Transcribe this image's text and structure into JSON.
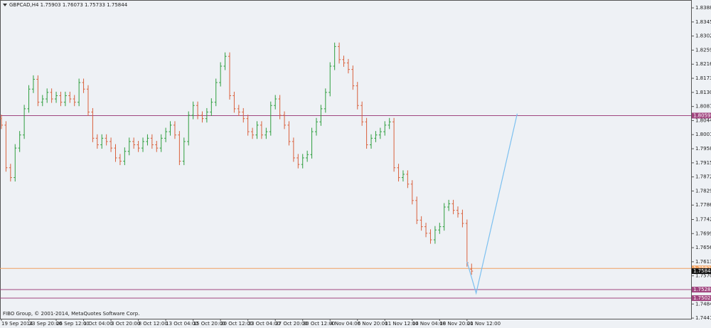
{
  "chart_data": {
    "type": "ohlc",
    "title": "GBPCAD,H4  1.75903 1.76073 1.75733 1.75844",
    "footer": "FIBO Group, © 2001-2014, MetaQuotes Software Corp.",
    "up_color": "#2e9e3e",
    "down_color": "#d9603c",
    "ylim": [
      1.7439,
      1.8412
    ],
    "yticks": [
      {
        "value": 1.8388,
        "label": "1.83880"
      },
      {
        "value": 1.8345,
        "label": "1.83450"
      },
      {
        "value": 1.8302,
        "label": "1.83020"
      },
      {
        "value": 1.8259,
        "label": "1.82590"
      },
      {
        "value": 1.8216,
        "label": "1.82160"
      },
      {
        "value": 1.8173,
        "label": "1.81730"
      },
      {
        "value": 1.813,
        "label": "1.81300"
      },
      {
        "value": 1.8087,
        "label": "1.80870"
      },
      {
        "value": 1.8044,
        "label": "1.80440"
      },
      {
        "value": 1.8001,
        "label": "1.80010"
      },
      {
        "value": 1.7958,
        "label": "1.79580"
      },
      {
        "value": 1.7915,
        "label": "1.79150"
      },
      {
        "value": 1.7872,
        "label": "1.78720"
      },
      {
        "value": 1.7829,
        "label": "1.78290"
      },
      {
        "value": 1.7786,
        "label": "1.77860"
      },
      {
        "value": 1.7742,
        "label": "1.77420"
      },
      {
        "value": 1.7699,
        "label": "1.76990"
      },
      {
        "value": 1.7656,
        "label": "1.76560"
      },
      {
        "value": 1.7613,
        "label": "1.76130"
      },
      {
        "value": 1.757,
        "label": "1.75700"
      },
      {
        "value": 1.7484,
        "label": "1.74840"
      },
      {
        "value": 1.7441,
        "label": "1.74410"
      }
    ],
    "categories": [
      "19 Sep 2014",
      null,
      null,
      null,
      null,
      null,
      "23 Sep 20:00",
      null,
      null,
      null,
      null,
      null,
      "26 Sep 12:00",
      null,
      null,
      null,
      null,
      null,
      "1 Oct 04:00",
      null,
      null,
      null,
      null,
      null,
      "3 Oct 20:00",
      null,
      null,
      null,
      null,
      null,
      "8 Oct 12:00",
      null,
      null,
      null,
      null,
      null,
      "13 Oct 04:00",
      null,
      null,
      null,
      null,
      null,
      "15 Oct 20:00",
      null,
      null,
      null,
      null,
      null,
      "20 Oct 12:00",
      null,
      null,
      null,
      null,
      null,
      "23 Oct 04:00",
      null,
      null,
      null,
      null,
      null,
      "27 Oct 20:00",
      null,
      null,
      null,
      null,
      null,
      "30 Oct 12:00",
      null,
      null,
      null,
      null,
      null,
      "4 Nov 04:00",
      null,
      null,
      null,
      null,
      null,
      "6 Nov 20:00",
      null,
      null,
      null,
      null,
      null,
      "11 Nov 12:00",
      null,
      null,
      null,
      null,
      null,
      "14 Nov 04:00",
      null,
      null,
      null,
      null,
      null,
      "18 Nov 20:00",
      null,
      null,
      null,
      null,
      null,
      "21 Nov 12:00",
      null
    ],
    "open": [
      1.805,
      1.803,
      1.79,
      1.787,
      1.796,
      1.8,
      1.808,
      1.814,
      1.817,
      1.81,
      1.811,
      1.813,
      1.811,
      1.812,
      1.81,
      1.812,
      1.811,
      1.81,
      1.816,
      1.814,
      1.807,
      1.799,
      1.797,
      1.799,
      1.798,
      1.796,
      1.793,
      1.792,
      1.795,
      1.798,
      1.797,
      1.796,
      1.798,
      1.799,
      1.797,
      1.796,
      1.799,
      1.801,
      1.803,
      1.8,
      1.792,
      1.798,
      1.806,
      1.809,
      1.806,
      1.805,
      1.807,
      1.81,
      1.816,
      1.821,
      1.824,
      1.812,
      1.808,
      1.807,
      1.805,
      1.801,
      1.8,
      1.803,
      1.8,
      1.801,
      1.809,
      1.811,
      1.806,
      1.803,
      1.798,
      1.793,
      1.791,
      1.793,
      1.794,
      1.801,
      1.804,
      1.808,
      1.813,
      1.821,
      1.827,
      1.823,
      1.822,
      1.82,
      1.815,
      1.809,
      1.804,
      1.797,
      1.799,
      1.8,
      1.801,
      1.803,
      1.804,
      1.79,
      1.787,
      1.788,
      1.785,
      1.78,
      1.774,
      1.772,
      1.77,
      1.768,
      1.771,
      1.772,
      1.778,
      1.779,
      1.777,
      1.776,
      1.773,
      1.75903
    ],
    "high": [
      1.8062,
      1.8042,
      1.7912,
      1.7972,
      1.8012,
      1.8092,
      1.8152,
      1.8182,
      1.8182,
      1.8122,
      1.8142,
      1.8142,
      1.8132,
      1.8132,
      1.8132,
      1.8132,
      1.8122,
      1.8172,
      1.8172,
      1.8152,
      1.8082,
      1.8002,
      1.8002,
      1.8002,
      1.7992,
      1.7972,
      1.7942,
      1.7962,
      1.7992,
      1.7992,
      1.7982,
      1.7992,
      1.8002,
      1.8002,
      1.7982,
      1.8002,
      1.8022,
      1.8042,
      1.8042,
      1.8012,
      1.7992,
      1.8072,
      1.8102,
      1.8102,
      1.8072,
      1.8082,
      1.8112,
      1.8172,
      1.8222,
      1.8252,
      1.8252,
      1.8132,
      1.8092,
      1.8082,
      1.8062,
      1.8022,
      1.8042,
      1.8042,
      1.8022,
      1.8102,
      1.8122,
      1.8122,
      1.8072,
      1.8042,
      1.7992,
      1.7942,
      1.7942,
      1.7952,
      1.8022,
      1.8052,
      1.8092,
      1.8142,
      1.8222,
      1.8282,
      1.8282,
      1.8242,
      1.8232,
      1.8212,
      1.8162,
      1.8102,
      1.8052,
      1.8002,
      1.8012,
      1.8022,
      1.8042,
      1.8052,
      1.8052,
      1.7912,
      1.7892,
      1.7892,
      1.7862,
      1.7812,
      1.7752,
      1.7732,
      1.7712,
      1.7722,
      1.7732,
      1.7792,
      1.7802,
      1.7802,
      1.7782,
      1.7772,
      1.7742,
      1.76073
    ],
    "low": [
      1.8018,
      1.7888,
      1.7858,
      1.7858,
      1.7948,
      1.7988,
      1.8068,
      1.8128,
      1.8088,
      1.8088,
      1.8098,
      1.8098,
      1.8098,
      1.8088,
      1.8088,
      1.8098,
      1.8088,
      1.8088,
      1.8128,
      1.8058,
      1.7978,
      1.7958,
      1.7958,
      1.7968,
      1.7948,
      1.7918,
      1.7908,
      1.7908,
      1.7938,
      1.7958,
      1.7948,
      1.7948,
      1.7968,
      1.7958,
      1.7948,
      1.7948,
      1.7978,
      1.7998,
      1.7988,
      1.7908,
      1.7908,
      1.7968,
      1.8048,
      1.8048,
      1.8038,
      1.8038,
      1.8058,
      1.8088,
      1.8148,
      1.8198,
      1.8108,
      1.8068,
      1.8058,
      1.8038,
      1.7998,
      1.7988,
      1.7988,
      1.7988,
      1.7988,
      1.7998,
      1.8078,
      1.8048,
      1.8018,
      1.7968,
      1.7918,
      1.7898,
      1.7898,
      1.7918,
      1.7928,
      1.7998,
      1.8028,
      1.8068,
      1.8118,
      1.8198,
      1.8218,
      1.8208,
      1.8188,
      1.8138,
      1.8078,
      1.8028,
      1.7958,
      1.7958,
      1.7978,
      1.7988,
      1.7998,
      1.8018,
      1.7888,
      1.7858,
      1.7858,
      1.7838,
      1.7788,
      1.7728,
      1.7708,
      1.7688,
      1.7668,
      1.7668,
      1.7698,
      1.7708,
      1.7768,
      1.7758,
      1.7748,
      1.7718,
      1.7598,
      1.75733
    ],
    "close": [
      1.803,
      1.79,
      1.787,
      1.796,
      1.8,
      1.808,
      1.814,
      1.817,
      1.81,
      1.811,
      1.813,
      1.811,
      1.812,
      1.81,
      1.812,
      1.811,
      1.81,
      1.816,
      1.814,
      1.807,
      1.799,
      1.797,
      1.799,
      1.798,
      1.796,
      1.793,
      1.792,
      1.795,
      1.798,
      1.797,
      1.796,
      1.798,
      1.799,
      1.797,
      1.796,
      1.799,
      1.801,
      1.803,
      1.8,
      1.792,
      1.798,
      1.806,
      1.809,
      1.806,
      1.805,
      1.807,
      1.81,
      1.816,
      1.821,
      1.824,
      1.812,
      1.808,
      1.807,
      1.805,
      1.801,
      1.8,
      1.803,
      1.8,
      1.801,
      1.809,
      1.811,
      1.806,
      1.803,
      1.798,
      1.793,
      1.791,
      1.793,
      1.794,
      1.801,
      1.804,
      1.808,
      1.813,
      1.821,
      1.827,
      1.823,
      1.822,
      1.82,
      1.815,
      1.809,
      1.804,
      1.797,
      1.799,
      1.8,
      1.801,
      1.803,
      1.804,
      1.79,
      1.787,
      1.788,
      1.785,
      1.78,
      1.774,
      1.772,
      1.77,
      1.768,
      1.771,
      1.772,
      1.778,
      1.779,
      1.777,
      1.776,
      1.773,
      1.761,
      1.75844
    ],
    "levels": [
      {
        "value": 1.80592,
        "label": "1.80592",
        "color": "#a0457f"
      },
      {
        "value": 1.75927,
        "label": "1.75927",
        "color": "#f0a060"
      },
      {
        "value": 1.7528,
        "label": "1.75280",
        "color": "#a0457f"
      },
      {
        "value": 1.7502,
        "label": "1.75020",
        "color": "#a0457f"
      }
    ],
    "current_price": {
      "value": 1.75844,
      "label": "1.75844"
    },
    "trendline": {
      "color": "#7cc0f0",
      "x": [
        102,
        104,
        113
      ],
      "values": [
        1.7613,
        1.7517,
        1.8065
      ]
    }
  }
}
